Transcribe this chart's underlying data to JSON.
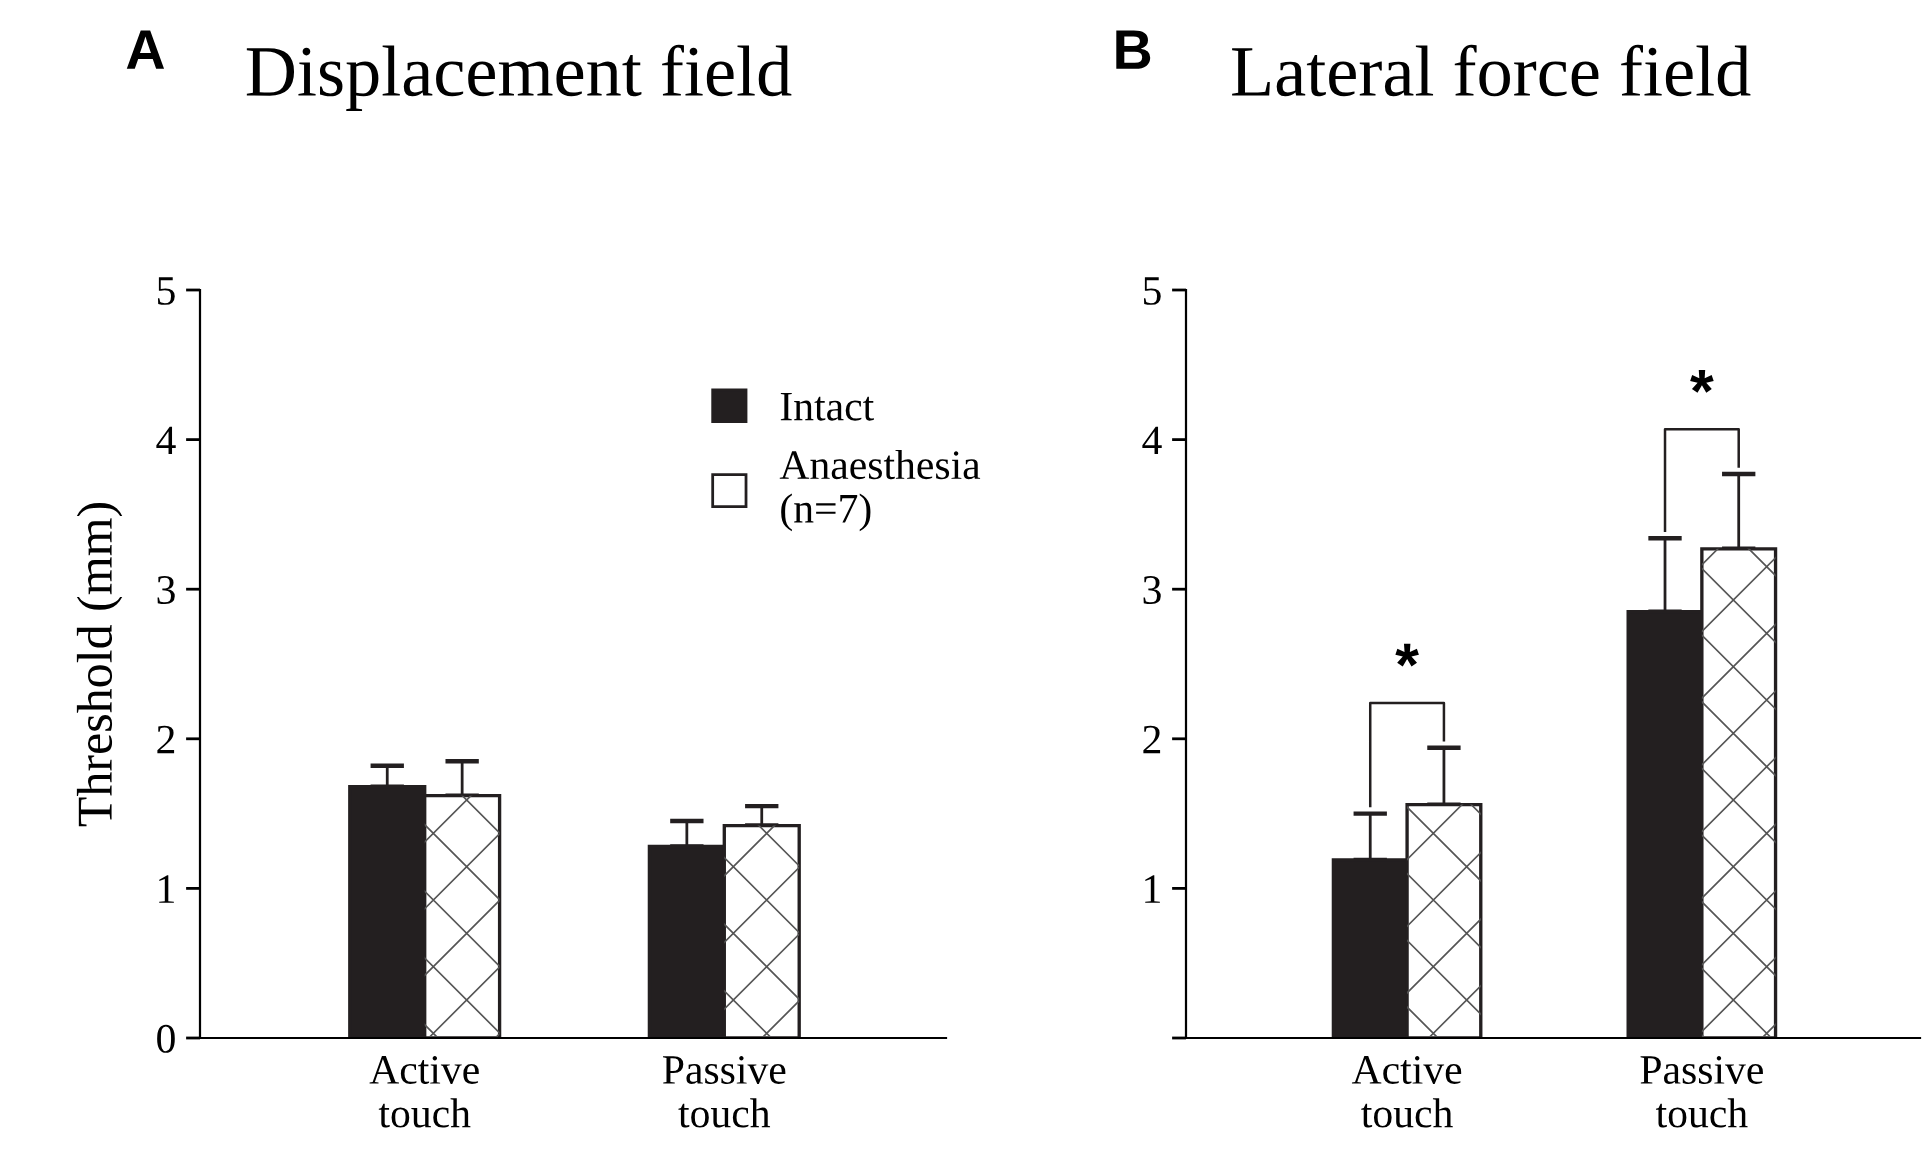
{
  "chart_data": [
    {
      "type": "bar",
      "title": "Displacement field",
      "ylabel": "Threshold (mm)",
      "categories": [
        "Active\ntouch",
        "Passive\ntouch"
      ],
      "series": [
        {
          "name": "Intact",
          "color": "#231f20",
          "values": [
            1.68,
            1.28
          ],
          "errors": [
            0.14,
            0.17
          ]
        },
        {
          "name": "Anaesthesia\n(n=7)",
          "color": "#ffffff",
          "values": [
            1.62,
            1.42
          ],
          "errors": [
            0.23,
            0.13
          ]
        }
      ],
      "ylim": [
        0,
        5
      ],
      "yticks": [
        0,
        1,
        2,
        3,
        4,
        5
      ],
      "legend": "top right",
      "annotations": [
        "A"
      ]
    },
    {
      "type": "bar",
      "title": "Lateral force field",
      "categories": [
        "Active\ntouch",
        "Passive\ntouch"
      ],
      "series": [
        {
          "color": "#231f20",
          "values": [
            1.19,
            2.85
          ],
          "errors": [
            0.31,
            0.49
          ]
        },
        {
          "color": "#ffffff",
          "values": [
            1.56,
            3.27
          ],
          "errors": [
            0.38,
            0.5
          ]
        }
      ],
      "ylim": [
        0,
        5
      ],
      "yticks": [
        {
          "value": 0,
          "label": null
        },
        1,
        2,
        3,
        4,
        5
      ],
      "annotations": [
        "B",
        {
          "text": "*",
          "x": "Active\ntouch",
          "y": 1.56
        },
        {
          "text": "*",
          "x": "Passive\ntouch",
          "y": 3.27
        }
      ]
    }
  ]
}
